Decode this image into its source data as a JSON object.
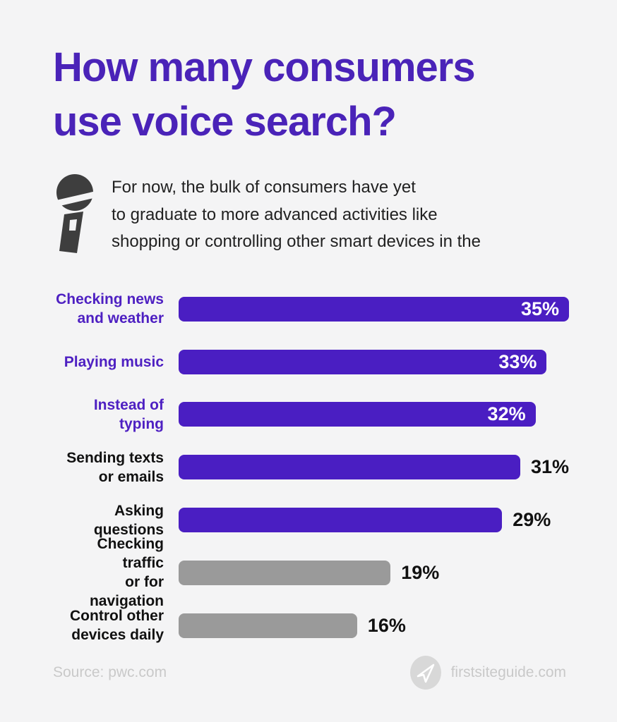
{
  "header": {
    "title_line1": "How many consumers",
    "title_line2": "use voice search?",
    "title_color": "#4a23b8"
  },
  "intro": {
    "icon": "microphone-icon",
    "line1": "For now, the bulk of consumers have yet",
    "line2": "to graduate to more advanced activities like",
    "line3": "shopping or controlling other smart devices in the"
  },
  "chart_data": {
    "type": "bar",
    "orientation": "horizontal",
    "title": "How many consumers use voice search?",
    "xlabel": "",
    "ylabel": "",
    "xlim": [
      0,
      35
    ],
    "grid": false,
    "legend": "none",
    "categories": [
      "Checking news and weather",
      "Playing music",
      "Instead of typing",
      "Sending texts or emails",
      "Asking questions",
      "Checking traffic or for navigation",
      "Control other devices daily"
    ],
    "values": [
      35,
      33,
      32,
      31,
      29,
      19,
      16
    ],
    "colors": {
      "primary_bar": "#4a1ec2",
      "secondary_bar": "#9a9a9a",
      "inside_value": "#ffffff",
      "outside_value": "#111111"
    },
    "rows": [
      {
        "label_lines": [
          "Checking news",
          "and weather"
        ],
        "value": 35,
        "value_label": "35%",
        "bar_color": "#4a1ec2",
        "label_color": "#4e20c2",
        "value_position": "inside"
      },
      {
        "label_lines": [
          "Playing music"
        ],
        "value": 33,
        "value_label": "33%",
        "bar_color": "#4a1ec2",
        "label_color": "#4e20c2",
        "value_position": "inside"
      },
      {
        "label_lines": [
          "Instead of typing"
        ],
        "value": 32,
        "value_label": "32%",
        "bar_color": "#4a1ec2",
        "label_color": "#4e20c2",
        "value_position": "inside"
      },
      {
        "label_lines": [
          "Sending texts",
          "or emails"
        ],
        "value": 31,
        "value_label": "31%",
        "bar_color": "#4a1ec2",
        "label_color": "#111111",
        "value_position": "outside"
      },
      {
        "label_lines": [
          "Asking questions"
        ],
        "value": 29,
        "value_label": "29%",
        "bar_color": "#4a1ec2",
        "label_color": "#111111",
        "value_position": "outside"
      },
      {
        "label_lines": [
          "Checking traffic",
          "or for navigation"
        ],
        "value": 19,
        "value_label": "19%",
        "bar_color": "#9a9a9a",
        "label_color": "#111111",
        "value_position": "outside"
      },
      {
        "label_lines": [
          "Control other",
          "devices daily"
        ],
        "value": 16,
        "value_label": "16%",
        "bar_color": "#9a9a9a",
        "label_color": "#111111",
        "value_position": "outside"
      }
    ]
  },
  "footer": {
    "source": "Source: pwc.com",
    "brand": "firstsiteguide.com",
    "icon": "paper-plane-icon"
  }
}
